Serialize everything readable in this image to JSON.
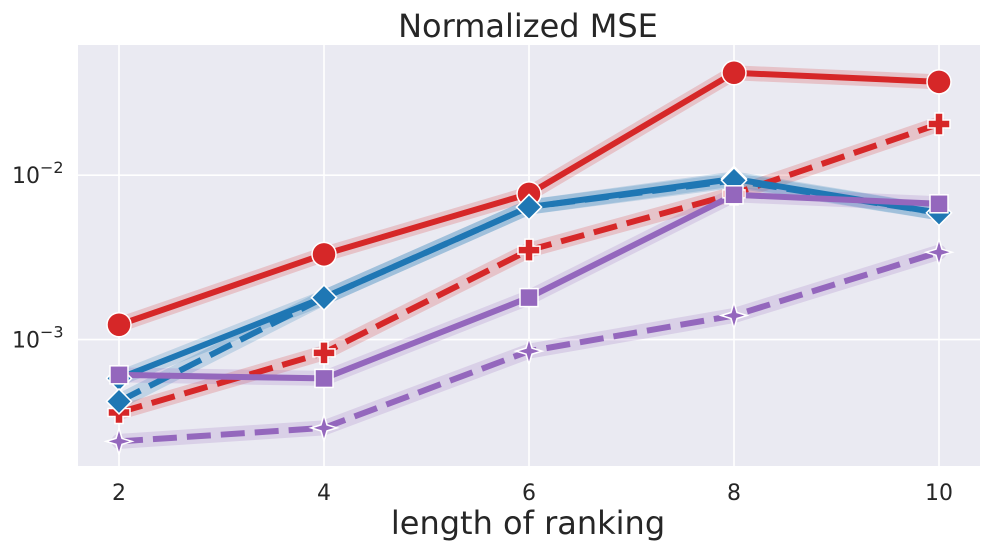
{
  "chart_data": {
    "type": "line",
    "title": "Normalized MSE",
    "xlabel": "length of ranking",
    "ylabel": "",
    "yscale": "log",
    "x": [
      2,
      4,
      6,
      8,
      10
    ],
    "xlim": [
      1.6,
      10.4
    ],
    "ylim": [
      0.00017,
      0.062
    ],
    "xticks": [
      "2",
      "4",
      "6",
      "8",
      "10"
    ],
    "yticks": [
      {
        "value": 0.01,
        "base": "10",
        "exp": "−2"
      },
      {
        "value": 0.001,
        "base": "10",
        "exp": "−3"
      }
    ],
    "grid": true,
    "colors": {
      "background": "#eaeaf2",
      "grid": "#ffffff",
      "red": "#d62728",
      "blue": "#1f77b4",
      "purple": "#9467bd"
    },
    "series": [
      {
        "name": "red-solid-circle",
        "color": "#d62728",
        "dash": "solid",
        "marker": "circle",
        "values": [
          0.00123,
          0.0033,
          0.0077,
          0.042,
          0.037
        ]
      },
      {
        "name": "red-dashed-plus",
        "color": "#d62728",
        "dash": "dashed",
        "marker": "plus",
        "values": [
          0.00036,
          0.00083,
          0.0035,
          0.0077,
          0.0205
        ]
      },
      {
        "name": "blue-solid-diamond",
        "color": "#1f77b4",
        "dash": "solid",
        "marker": "diamond",
        "values": [
          0.00058,
          0.0018,
          0.0064,
          0.0095,
          0.0059
        ]
      },
      {
        "name": "blue-dashed-diamond",
        "color": "#1f77b4",
        "dash": "dashed",
        "marker": "diamond",
        "values": [
          0.00042,
          0.0018,
          0.0064,
          0.0093,
          0.0059
        ]
      },
      {
        "name": "purple-solid-square",
        "color": "#9467bd",
        "dash": "solid",
        "marker": "square",
        "values": [
          0.00061,
          0.00058,
          0.0018,
          0.0076,
          0.0067
        ]
      },
      {
        "name": "purple-dashed-star",
        "color": "#9467bd",
        "dash": "dashed",
        "marker": "star",
        "values": [
          0.00024,
          0.00029,
          0.00085,
          0.0014,
          0.0034
        ]
      }
    ]
  }
}
